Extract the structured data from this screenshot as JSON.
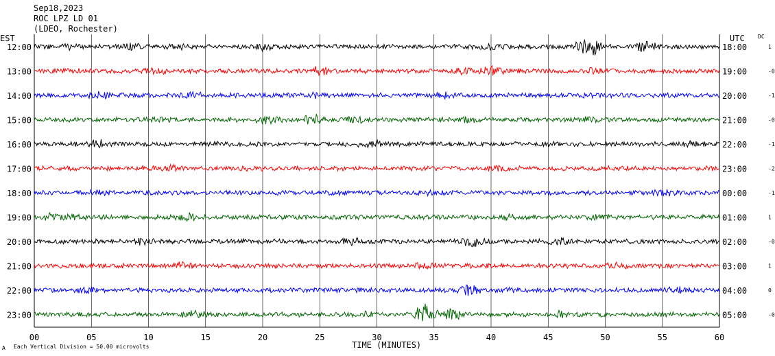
{
  "header": {
    "date": "Sep18,2023",
    "station": "ROC LPZ LD 01",
    "network": "(LDEO, Rochester)"
  },
  "chart_data": {
    "type": "line",
    "title": "Sep18,2023",
    "xlabel": "TIME (MINUTES)",
    "xlim": [
      0,
      60
    ],
    "xticks": [
      "00",
      "05",
      "10",
      "15",
      "20",
      "25",
      "30",
      "35",
      "40",
      "45",
      "50",
      "55",
      "60"
    ],
    "left_axis_title": "EST",
    "right_axis_title": "UTC",
    "dc_title": "DC",
    "scale_note": "Each Vertical Division = 50.00 microvolts",
    "scale_note_marker": "A",
    "grid": true,
    "series": [
      {
        "est": "12:00",
        "utc": "18:00",
        "dc": "1",
        "color": "#000000",
        "events": [
          {
            "minute": 2.8,
            "amp": 1.3
          },
          {
            "minute": 8.5,
            "amp": 1.6
          },
          {
            "minute": 13.0,
            "amp": 1.2
          },
          {
            "minute": 20.0,
            "amp": 1.6
          },
          {
            "minute": 40.0,
            "amp": 1.3
          },
          {
            "minute": 48.5,
            "amp": 3.6
          },
          {
            "minute": 53.5,
            "amp": 1.8
          }
        ]
      },
      {
        "est": "13:00",
        "utc": "19:00",
        "dc": "-0",
        "color": "#ff0000",
        "events": [
          {
            "minute": 3.0,
            "amp": 1.5
          },
          {
            "minute": 10.5,
            "amp": 1.4
          },
          {
            "minute": 25.0,
            "amp": 1.6
          },
          {
            "minute": 37.5,
            "amp": 1.5
          },
          {
            "minute": 40.0,
            "amp": 1.8
          },
          {
            "minute": 49.0,
            "amp": 1.5
          }
        ]
      },
      {
        "est": "14:00",
        "utc": "20:00",
        "dc": "-1",
        "color": "#0000ff",
        "events": [
          {
            "minute": 6.0,
            "amp": 1.5
          },
          {
            "minute": 14.0,
            "amp": 1.3
          },
          {
            "minute": 24.5,
            "amp": 1.4
          },
          {
            "minute": 36.0,
            "amp": 1.4
          },
          {
            "minute": 48.5,
            "amp": 1.3
          }
        ]
      },
      {
        "est": "15:00",
        "utc": "21:00",
        "dc": "-0",
        "color": "#006400",
        "events": [
          {
            "minute": 11.0,
            "amp": 1.3
          },
          {
            "minute": 20.5,
            "amp": 1.6
          },
          {
            "minute": 24.5,
            "amp": 1.8
          },
          {
            "minute": 28.0,
            "amp": 1.4
          },
          {
            "minute": 38.0,
            "amp": 1.5
          },
          {
            "minute": 48.5,
            "amp": 1.4
          }
        ]
      },
      {
        "est": "16:00",
        "utc": "22:00",
        "dc": "-1",
        "color": "#000000",
        "events": [
          {
            "minute": 5.5,
            "amp": 1.6
          },
          {
            "minute": 15.0,
            "amp": 1.2
          },
          {
            "minute": 29.5,
            "amp": 1.5
          },
          {
            "minute": 57.5,
            "amp": 1.4
          }
        ]
      },
      {
        "est": "17:00",
        "utc": "23:00",
        "dc": "-2",
        "color": "#ff0000",
        "events": [
          {
            "minute": 12.5,
            "amp": 1.5
          },
          {
            "minute": 19.0,
            "amp": 1.3
          },
          {
            "minute": 40.5,
            "amp": 1.4
          },
          {
            "minute": 51.0,
            "amp": 1.3
          }
        ]
      },
      {
        "est": "18:00",
        "utc": "00:00",
        "dc": "-1",
        "color": "#0000ff",
        "events": [
          {
            "minute": 5.5,
            "amp": 1.4
          },
          {
            "minute": 35.0,
            "amp": 1.2
          },
          {
            "minute": 55.5,
            "amp": 1.5
          }
        ]
      },
      {
        "est": "19:00",
        "utc": "01:00",
        "dc": "1",
        "color": "#006400",
        "events": [
          {
            "minute": 1.5,
            "amp": 1.4
          },
          {
            "minute": 3.5,
            "amp": 1.3
          },
          {
            "minute": 13.5,
            "amp": 1.6
          },
          {
            "minute": 41.5,
            "amp": 1.4
          },
          {
            "minute": 49.5,
            "amp": 1.3
          }
        ]
      },
      {
        "est": "20:00",
        "utc": "02:00",
        "dc": "-0",
        "color": "#000000",
        "events": [
          {
            "minute": 9.5,
            "amp": 1.4
          },
          {
            "minute": 27.5,
            "amp": 1.5
          },
          {
            "minute": 38.5,
            "amp": 1.9
          },
          {
            "minute": 46.0,
            "amp": 1.4
          }
        ]
      },
      {
        "est": "21:00",
        "utc": "03:00",
        "dc": "1",
        "color": "#ff0000",
        "events": [
          {
            "minute": 13.0,
            "amp": 1.4
          },
          {
            "minute": 34.0,
            "amp": 1.4
          },
          {
            "minute": 51.0,
            "amp": 1.3
          }
        ]
      },
      {
        "est": "22:00",
        "utc": "04:00",
        "dc": "0",
        "color": "#0000ff",
        "events": [
          {
            "minute": 4.5,
            "amp": 1.4
          },
          {
            "minute": 38.0,
            "amp": 2.0
          },
          {
            "minute": 42.0,
            "amp": 1.3
          },
          {
            "minute": 56.5,
            "amp": 1.3
          }
        ]
      },
      {
        "est": "23:00",
        "utc": "05:00",
        "dc": "-0",
        "color": "#006400",
        "events": [
          {
            "minute": 14.0,
            "amp": 1.5
          },
          {
            "minute": 28.5,
            "amp": 1.3
          },
          {
            "minute": 34.2,
            "amp": 2.6
          },
          {
            "minute": 36.5,
            "amp": 2.2
          },
          {
            "minute": 46.0,
            "amp": 1.4
          }
        ]
      }
    ]
  }
}
